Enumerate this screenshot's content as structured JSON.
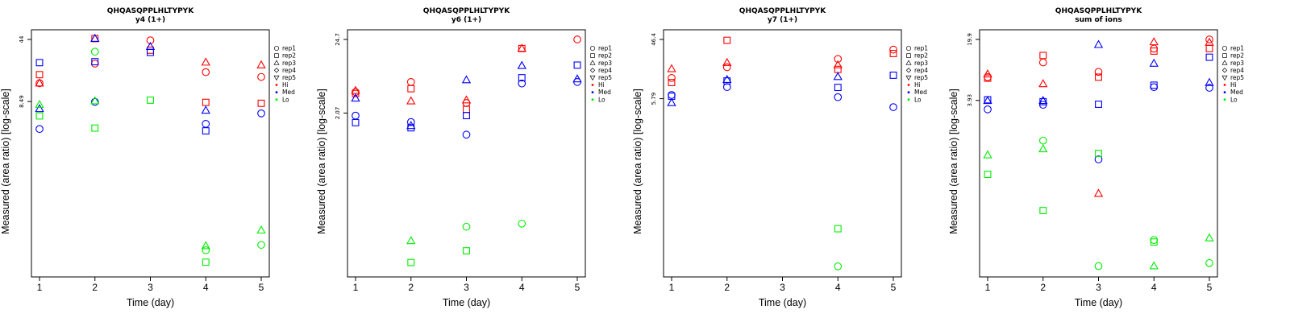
{
  "colors": {
    "Hi": "#ff0000",
    "Med": "#0000ff",
    "Lo": "#00ee00"
  },
  "legend": {
    "shapes": [
      {
        "label": "rep1",
        "marker": "circle"
      },
      {
        "label": "rep2",
        "marker": "square"
      },
      {
        "label": "rep3",
        "marker": "triangle-up"
      },
      {
        "label": "rep4",
        "marker": "diamond"
      },
      {
        "label": "rep5",
        "marker": "triangle-down"
      }
    ],
    "levels": [
      {
        "label": "Hi"
      },
      {
        "label": "Med"
      },
      {
        "label": "Lo"
      }
    ]
  },
  "chart_data": [
    {
      "type": "scatter",
      "title": "QHQASQPPLHLTYPYK",
      "subtitle": "y4 (1+)",
      "xlabel": "Time (day)",
      "ylabel": "Measured (area ratio) [log-scale]",
      "y_scale": "log",
      "x_ticks": [
        1,
        2,
        3,
        4,
        5
      ],
      "y_ticks": [
        8.49,
        44
      ],
      "y_tick_labels": [
        "8.49",
        "44"
      ],
      "ylim": [
        0.105,
        44
      ],
      "points": [
        {
          "x": 1,
          "y": 13.8,
          "rep": "rep1",
          "level": "Hi"
        },
        {
          "x": 1,
          "y": 17.3,
          "rep": "rep2",
          "level": "Hi"
        },
        {
          "x": 1,
          "y": 13.8,
          "rep": "rep3",
          "level": "Hi"
        },
        {
          "x": 1,
          "y": 4.1,
          "rep": "rep1",
          "level": "Med"
        },
        {
          "x": 1,
          "y": 23.8,
          "rep": "rep2",
          "level": "Med"
        },
        {
          "x": 1,
          "y": 7.0,
          "rep": "rep3",
          "level": "Med"
        },
        {
          "x": 1,
          "y": 5.8,
          "rep": "rep2",
          "level": "Lo"
        },
        {
          "x": 1,
          "y": 7.8,
          "rep": "rep3",
          "level": "Lo"
        },
        {
          "x": 2,
          "y": 23.2,
          "rep": "rep1",
          "level": "Hi"
        },
        {
          "x": 2,
          "y": 45.0,
          "rep": "rep2",
          "level": "Hi"
        },
        {
          "x": 2,
          "y": 45.0,
          "rep": "rep3",
          "level": "Hi"
        },
        {
          "x": 2,
          "y": 24.4,
          "rep": "rep2",
          "level": "Med"
        },
        {
          "x": 2,
          "y": 45.0,
          "rep": "rep3",
          "level": "Med"
        },
        {
          "x": 2,
          "y": 8.4,
          "rep": "rep1",
          "level": "Med"
        },
        {
          "x": 2,
          "y": 8.6,
          "rep": "rep3",
          "level": "Lo"
        },
        {
          "x": 2,
          "y": 31.8,
          "rep": "rep1",
          "level": "Lo"
        },
        {
          "x": 2,
          "y": 4.2,
          "rep": "rep2",
          "level": "Lo"
        },
        {
          "x": 3,
          "y": 43.0,
          "rep": "rep1",
          "level": "Hi"
        },
        {
          "x": 3,
          "y": 33.1,
          "rep": "rep2",
          "level": "Hi"
        },
        {
          "x": 3,
          "y": 31.2,
          "rep": "rep2",
          "level": "Med"
        },
        {
          "x": 3,
          "y": 36.3,
          "rep": "rep3",
          "level": "Med"
        },
        {
          "x": 3,
          "y": 8.8,
          "rep": "rep2",
          "level": "Lo"
        },
        {
          "x": 4,
          "y": 18.5,
          "rep": "rep1",
          "level": "Hi"
        },
        {
          "x": 4,
          "y": 24.0,
          "rep": "rep3",
          "level": "Hi"
        },
        {
          "x": 4,
          "y": 8.3,
          "rep": "rep2",
          "level": "Hi"
        },
        {
          "x": 4,
          "y": 6.7,
          "rep": "rep3",
          "level": "Med"
        },
        {
          "x": 4,
          "y": 4.7,
          "rep": "rep1",
          "level": "Med"
        },
        {
          "x": 4,
          "y": 3.9,
          "rep": "rep2",
          "level": "Med"
        },
        {
          "x": 4,
          "y": 0.185,
          "rep": "rep3",
          "level": "Lo"
        },
        {
          "x": 4,
          "y": 0.165,
          "rep": "rep1",
          "level": "Lo"
        },
        {
          "x": 4,
          "y": 0.12,
          "rep": "rep2",
          "level": "Lo"
        },
        {
          "x": 5,
          "y": 22.3,
          "rep": "rep3",
          "level": "Hi"
        },
        {
          "x": 5,
          "y": 16.3,
          "rep": "rep1",
          "level": "Hi"
        },
        {
          "x": 5,
          "y": 8.1,
          "rep": "rep2",
          "level": "Hi"
        },
        {
          "x": 5,
          "y": 6.2,
          "rep": "rep1",
          "level": "Med"
        },
        {
          "x": 5,
          "y": 0.28,
          "rep": "rep3",
          "level": "Lo"
        },
        {
          "x": 5,
          "y": 0.19,
          "rep": "rep1",
          "level": "Lo"
        }
      ]
    },
    {
      "type": "scatter",
      "title": "QHQASQPPLHLTYPYK",
      "subtitle": "y6 (1+)",
      "xlabel": "Time (day)",
      "ylabel": "Measured (area ratio) [log-scale]",
      "y_scale": "log",
      "x_ticks": [
        1,
        2,
        3,
        4,
        5
      ],
      "y_ticks": [
        2.07,
        24.7
      ],
      "y_tick_labels": [
        "2.07",
        "24.7"
      ],
      "ylim": [
        0.0115,
        24.7
      ],
      "points": [
        {
          "x": 1,
          "y": 4.4,
          "rep": "rep3",
          "level": "Hi"
        },
        {
          "x": 1,
          "y": 4.2,
          "rep": "rep1",
          "level": "Hi"
        },
        {
          "x": 1,
          "y": 4.0,
          "rep": "rep2",
          "level": "Hi"
        },
        {
          "x": 1,
          "y": 3.4,
          "rep": "rep3",
          "level": "Med"
        },
        {
          "x": 1,
          "y": 1.9,
          "rep": "rep1",
          "level": "Med"
        },
        {
          "x": 1,
          "y": 1.5,
          "rep": "rep2",
          "level": "Med"
        },
        {
          "x": 2,
          "y": 5.9,
          "rep": "rep1",
          "level": "Hi"
        },
        {
          "x": 2,
          "y": 4.7,
          "rep": "rep2",
          "level": "Hi"
        },
        {
          "x": 2,
          "y": 3.1,
          "rep": "rep3",
          "level": "Hi"
        },
        {
          "x": 2,
          "y": 1.53,
          "rep": "rep1",
          "level": "Med"
        },
        {
          "x": 2,
          "y": 1.35,
          "rep": "rep3",
          "level": "Med"
        },
        {
          "x": 2,
          "y": 1.26,
          "rep": "rep2",
          "level": "Med"
        },
        {
          "x": 2,
          "y": 0.028,
          "rep": "rep3",
          "level": "Lo"
        },
        {
          "x": 2,
          "y": 0.0135,
          "rep": "rep2",
          "level": "Lo"
        },
        {
          "x": 3,
          "y": 3.2,
          "rep": "rep3",
          "level": "Hi"
        },
        {
          "x": 3,
          "y": 2.9,
          "rep": "rep1",
          "level": "Hi"
        },
        {
          "x": 3,
          "y": 2.35,
          "rep": "rep2",
          "level": "Hi"
        },
        {
          "x": 3,
          "y": 6.3,
          "rep": "rep3",
          "level": "Med"
        },
        {
          "x": 3,
          "y": 1.9,
          "rep": "rep2",
          "level": "Med"
        },
        {
          "x": 3,
          "y": 1.0,
          "rep": "rep1",
          "level": "Med"
        },
        {
          "x": 3,
          "y": 0.045,
          "rep": "rep1",
          "level": "Lo"
        },
        {
          "x": 3,
          "y": 0.02,
          "rep": "rep2",
          "level": "Lo"
        },
        {
          "x": 4,
          "y": 18.2,
          "rep": "rep2",
          "level": "Hi"
        },
        {
          "x": 4,
          "y": 18.2,
          "rep": "rep3",
          "level": "Hi"
        },
        {
          "x": 4,
          "y": 10.2,
          "rep": "rep3",
          "level": "Med"
        },
        {
          "x": 4,
          "y": 6.8,
          "rep": "rep2",
          "level": "Med"
        },
        {
          "x": 4,
          "y": 5.6,
          "rep": "rep1",
          "level": "Med"
        },
        {
          "x": 4,
          "y": 0.05,
          "rep": "rep1",
          "level": "Lo"
        },
        {
          "x": 5,
          "y": 24.7,
          "rep": "rep1",
          "level": "Hi"
        },
        {
          "x": 5,
          "y": 10.4,
          "rep": "rep2",
          "level": "Med"
        },
        {
          "x": 5,
          "y": 6.5,
          "rep": "rep3",
          "level": "Med"
        },
        {
          "x": 5,
          "y": 5.9,
          "rep": "rep1",
          "level": "Med"
        }
      ]
    },
    {
      "type": "scatter",
      "title": "QHQASQPPLHLTYPYK",
      "subtitle": "y7 (1+)",
      "xlabel": "Time (day)",
      "ylabel": "Measured (area ratio) [log-scale]",
      "y_scale": "log",
      "x_ticks": [
        1,
        2,
        3,
        4,
        5
      ],
      "y_ticks": [
        5.79,
        46.4
      ],
      "y_tick_labels": [
        "5.79",
        "46.4"
      ],
      "ylim": [
        0.0155,
        46.4
      ],
      "points": [
        {
          "x": 1,
          "y": 16.5,
          "rep": "rep3",
          "level": "Hi"
        },
        {
          "x": 1,
          "y": 12.0,
          "rep": "rep1",
          "level": "Hi"
        },
        {
          "x": 1,
          "y": 10.2,
          "rep": "rep2",
          "level": "Hi"
        },
        {
          "x": 1,
          "y": 6.6,
          "rep": "rep1",
          "level": "Med"
        },
        {
          "x": 1,
          "y": 6.3,
          "rep": "rep2",
          "level": "Med"
        },
        {
          "x": 1,
          "y": 5.0,
          "rep": "rep3",
          "level": "Med"
        },
        {
          "x": 2,
          "y": 45.0,
          "rep": "rep2",
          "level": "Hi"
        },
        {
          "x": 2,
          "y": 20.5,
          "rep": "rep3",
          "level": "Hi"
        },
        {
          "x": 2,
          "y": 17.5,
          "rep": "rep1",
          "level": "Hi"
        },
        {
          "x": 2,
          "y": 11.3,
          "rep": "rep3",
          "level": "Med"
        },
        {
          "x": 2,
          "y": 10.8,
          "rep": "rep2",
          "level": "Med"
        },
        {
          "x": 2,
          "y": 8.7,
          "rep": "rep1",
          "level": "Med"
        },
        {
          "x": 4,
          "y": 23.4,
          "rep": "rep1",
          "level": "Hi"
        },
        {
          "x": 4,
          "y": 18.9,
          "rep": "rep3",
          "level": "Hi"
        },
        {
          "x": 4,
          "y": 16.2,
          "rep": "rep2",
          "level": "Hi"
        },
        {
          "x": 4,
          "y": 12.5,
          "rep": "rep3",
          "level": "Med"
        },
        {
          "x": 4,
          "y": 8.6,
          "rep": "rep2",
          "level": "Med"
        },
        {
          "x": 4,
          "y": 6.1,
          "rep": "rep1",
          "level": "Med"
        },
        {
          "x": 4,
          "y": 0.06,
          "rep": "rep2",
          "level": "Lo"
        },
        {
          "x": 4,
          "y": 0.016,
          "rep": "rep1",
          "level": "Lo"
        },
        {
          "x": 5,
          "y": 32.5,
          "rep": "rep1",
          "level": "Hi"
        },
        {
          "x": 5,
          "y": 28.3,
          "rep": "rep2",
          "level": "Hi"
        },
        {
          "x": 5,
          "y": 13.2,
          "rep": "rep2",
          "level": "Med"
        },
        {
          "x": 5,
          "y": 4.3,
          "rep": "rep1",
          "level": "Med"
        }
      ]
    },
    {
      "type": "scatter",
      "title": "QHQASQPPLHLTYPYK",
      "subtitle": "sum of ions",
      "xlabel": "Time (day)",
      "ylabel": "Measured (area ratio) [log-scale]",
      "y_scale": "log",
      "x_ticks": [
        1,
        2,
        3,
        4,
        5
      ],
      "y_ticks": [
        3.93,
        19.9
      ],
      "y_tick_labels": [
        "3.93",
        "19.9"
      ],
      "ylim": [
        0.0465,
        19.9
      ],
      "points": [
        {
          "x": 1,
          "y": 7.9,
          "rep": "rep3",
          "level": "Hi"
        },
        {
          "x": 1,
          "y": 7.3,
          "rep": "rep1",
          "level": "Hi"
        },
        {
          "x": 1,
          "y": 7.1,
          "rep": "rep2",
          "level": "Hi"
        },
        {
          "x": 1,
          "y": 4.0,
          "rep": "rep2",
          "level": "Med"
        },
        {
          "x": 1,
          "y": 3.9,
          "rep": "rep3",
          "level": "Med"
        },
        {
          "x": 1,
          "y": 3.1,
          "rep": "rep1",
          "level": "Med"
        },
        {
          "x": 1,
          "y": 0.92,
          "rep": "rep3",
          "level": "Lo"
        },
        {
          "x": 1,
          "y": 0.55,
          "rep": "rep2",
          "level": "Lo"
        },
        {
          "x": 2,
          "y": 13.0,
          "rep": "rep2",
          "level": "Hi"
        },
        {
          "x": 2,
          "y": 10.8,
          "rep": "rep1",
          "level": "Hi"
        },
        {
          "x": 2,
          "y": 6.1,
          "rep": "rep3",
          "level": "Hi"
        },
        {
          "x": 2,
          "y": 3.9,
          "rep": "rep3",
          "level": "Med"
        },
        {
          "x": 2,
          "y": 3.8,
          "rep": "rep2",
          "level": "Med"
        },
        {
          "x": 2,
          "y": 3.5,
          "rep": "rep1",
          "level": "Med"
        },
        {
          "x": 2,
          "y": 1.35,
          "rep": "rep1",
          "level": "Lo"
        },
        {
          "x": 2,
          "y": 1.08,
          "rep": "rep3",
          "level": "Lo"
        },
        {
          "x": 2,
          "y": 0.21,
          "rep": "rep2",
          "level": "Lo"
        },
        {
          "x": 3,
          "y": 8.4,
          "rep": "rep1",
          "level": "Hi"
        },
        {
          "x": 3,
          "y": 7.3,
          "rep": "rep2",
          "level": "Hi"
        },
        {
          "x": 3,
          "y": 0.33,
          "rep": "rep3",
          "level": "Hi"
        },
        {
          "x": 3,
          "y": 17.3,
          "rep": "rep3",
          "level": "Med"
        },
        {
          "x": 3,
          "y": 3.55,
          "rep": "rep2",
          "level": "Med"
        },
        {
          "x": 3,
          "y": 0.82,
          "rep": "rep1",
          "level": "Med"
        },
        {
          "x": 3,
          "y": 0.96,
          "rep": "rep2",
          "level": "Lo"
        },
        {
          "x": 3,
          "y": 0.048,
          "rep": "rep1",
          "level": "Lo"
        },
        {
          "x": 4,
          "y": 18.6,
          "rep": "rep3",
          "level": "Hi"
        },
        {
          "x": 4,
          "y": 15.6,
          "rep": "rep1",
          "level": "Hi"
        },
        {
          "x": 4,
          "y": 14.6,
          "rep": "rep2",
          "level": "Hi"
        },
        {
          "x": 4,
          "y": 10.5,
          "rep": "rep3",
          "level": "Med"
        },
        {
          "x": 4,
          "y": 5.9,
          "rep": "rep2",
          "level": "Med"
        },
        {
          "x": 4,
          "y": 5.6,
          "rep": "rep1",
          "level": "Med"
        },
        {
          "x": 4,
          "y": 0.096,
          "rep": "rep1",
          "level": "Lo"
        },
        {
          "x": 4,
          "y": 0.091,
          "rep": "rep2",
          "level": "Lo"
        },
        {
          "x": 4,
          "y": 0.048,
          "rep": "rep3",
          "level": "Lo"
        },
        {
          "x": 5,
          "y": 19.9,
          "rep": "rep1",
          "level": "Hi"
        },
        {
          "x": 5,
          "y": 18.4,
          "rep": "rep3",
          "level": "Hi"
        },
        {
          "x": 5,
          "y": 15.6,
          "rep": "rep2",
          "level": "Hi"
        },
        {
          "x": 5,
          "y": 12.4,
          "rep": "rep2",
          "level": "Med"
        },
        {
          "x": 5,
          "y": 6.3,
          "rep": "rep3",
          "level": "Med"
        },
        {
          "x": 5,
          "y": 5.5,
          "rep": "rep1",
          "level": "Med"
        },
        {
          "x": 5,
          "y": 0.101,
          "rep": "rep3",
          "level": "Lo"
        },
        {
          "x": 5,
          "y": 0.052,
          "rep": "rep1",
          "level": "Lo"
        }
      ]
    }
  ]
}
